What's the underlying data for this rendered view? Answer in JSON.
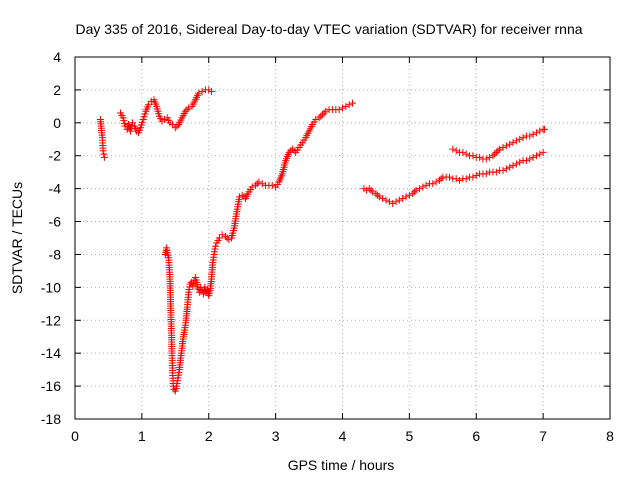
{
  "chart_data": {
    "type": "scatter",
    "title": "Day 335 of 2016, Sidereal Day-to-day VTEC variation (SDTVAR) for receiver rnna",
    "xlabel": "GPS time / hours",
    "ylabel": "SDTVAR / TECUs",
    "xlim": [
      0,
      8
    ],
    "ylim": [
      -18,
      4
    ],
    "xticks": [
      0,
      1,
      2,
      3,
      4,
      5,
      6,
      7,
      8
    ],
    "yticks": [
      -18,
      -16,
      -14,
      -12,
      -10,
      -8,
      -6,
      -4,
      -2,
      0,
      2,
      4
    ],
    "grid": true,
    "marker": "+",
    "color": "#ff0000",
    "series": [
      {
        "segments": [
          [
            [
              0.38,
              0.2
            ],
            [
              0.4,
              -0.6
            ],
            [
              0.41,
              -0.9
            ],
            [
              0.42,
              -1.7
            ],
            [
              0.43,
              -1.9
            ],
            [
              0.44,
              -2.1
            ]
          ],
          [
            [
              0.68,
              0.6
            ],
            [
              0.72,
              0.3
            ],
            [
              0.75,
              -0.2
            ],
            [
              0.78,
              -0.4
            ],
            [
              0.8,
              -0.1
            ],
            [
              0.83,
              -0.5
            ],
            [
              0.86,
              0.0
            ],
            [
              0.89,
              -0.2
            ],
            [
              0.92,
              -0.5
            ],
            [
              0.95,
              -0.6
            ],
            [
              0.98,
              -0.3
            ],
            [
              1.02,
              0.2
            ],
            [
              1.06,
              0.7
            ],
            [
              1.1,
              1.1
            ],
            [
              1.14,
              1.3
            ],
            [
              1.18,
              1.4
            ],
            [
              1.22,
              1.0
            ],
            [
              1.26,
              0.4
            ],
            [
              1.3,
              0.1
            ],
            [
              1.34,
              0.2
            ],
            [
              1.38,
              0.3
            ],
            [
              1.42,
              0.0
            ],
            [
              1.46,
              -0.1
            ],
            [
              1.5,
              -0.3
            ],
            [
              1.55,
              -0.1
            ],
            [
              1.6,
              0.3
            ],
            [
              1.65,
              0.7
            ],
            [
              1.7,
              0.9
            ],
            [
              1.75,
              1.0
            ],
            [
              1.8,
              1.4
            ],
            [
              1.85,
              1.8
            ],
            [
              1.9,
              1.9
            ],
            [
              1.95,
              2.0
            ],
            [
              2.0,
              2.0
            ],
            [
              2.04,
              1.9
            ]
          ],
          [
            [
              1.35,
              -8.0
            ],
            [
              1.37,
              -7.6
            ],
            [
              1.38,
              -7.9
            ],
            [
              1.4,
              -8.2
            ],
            [
              1.41,
              -8.8
            ],
            [
              1.42,
              -9.5
            ],
            [
              1.43,
              -11.0
            ],
            [
              1.44,
              -12.5
            ],
            [
              1.45,
              -14.0
            ],
            [
              1.46,
              -15.2
            ],
            [
              1.47,
              -16.0
            ],
            [
              1.48,
              -16.2
            ],
            [
              1.5,
              -16.3
            ],
            [
              1.52,
              -16.0
            ],
            [
              1.54,
              -15.5
            ],
            [
              1.56,
              -15.0
            ],
            [
              1.58,
              -14.3
            ],
            [
              1.6,
              -13.7
            ],
            [
              1.62,
              -13.0
            ],
            [
              1.64,
              -12.6
            ],
            [
              1.66,
              -12.0
            ],
            [
              1.68,
              -11.2
            ],
            [
              1.7,
              -10.3
            ],
            [
              1.72,
              -9.8
            ],
            [
              1.74,
              -9.7
            ],
            [
              1.76,
              -9.9
            ],
            [
              1.78,
              -9.6
            ],
            [
              1.8,
              -9.4
            ],
            [
              1.82,
              -9.7
            ],
            [
              1.84,
              -10.1
            ],
            [
              1.86,
              -10.3
            ],
            [
              1.88,
              -10.0
            ],
            [
              1.9,
              -10.2
            ],
            [
              1.92,
              -10.4
            ],
            [
              1.94,
              -10.0
            ],
            [
              1.96,
              -10.3
            ],
            [
              1.98,
              -10.1
            ],
            [
              2.0,
              -10.5
            ],
            [
              2.02,
              -10.2
            ],
            [
              2.04,
              -9.5
            ],
            [
              2.06,
              -8.5
            ],
            [
              2.08,
              -8.0
            ],
            [
              2.1,
              -7.5
            ]
          ],
          [
            [
              2.12,
              -7.3
            ],
            [
              2.16,
              -7.0
            ],
            [
              2.2,
              -6.8
            ],
            [
              2.25,
              -6.9
            ],
            [
              2.3,
              -7.1
            ],
            [
              2.34,
              -7.0
            ],
            [
              2.38,
              -6.4
            ],
            [
              2.42,
              -5.4
            ],
            [
              2.46,
              -4.5
            ],
            [
              2.5,
              -4.4
            ],
            [
              2.55,
              -4.6
            ],
            [
              2.6,
              -4.2
            ],
            [
              2.65,
              -3.9
            ],
            [
              2.7,
              -3.8
            ],
            [
              2.75,
              -3.6
            ],
            [
              2.8,
              -3.7
            ],
            [
              2.85,
              -3.8
            ],
            [
              2.9,
              -3.8
            ],
            [
              2.95,
              -3.8
            ],
            [
              3.0,
              -3.9
            ],
            [
              3.05,
              -3.6
            ],
            [
              3.1,
              -3.1
            ],
            [
              3.15,
              -2.3
            ],
            [
              3.2,
              -1.8
            ],
            [
              3.25,
              -1.6
            ],
            [
              3.3,
              -1.8
            ],
            [
              3.35,
              -1.5
            ],
            [
              3.4,
              -1.2
            ],
            [
              3.45,
              -0.9
            ],
            [
              3.5,
              -0.5
            ],
            [
              3.55,
              -0.1
            ],
            [
              3.6,
              0.2
            ],
            [
              3.65,
              0.3
            ],
            [
              3.7,
              0.5
            ],
            [
              3.75,
              0.7
            ],
            [
              3.8,
              0.8
            ],
            [
              3.85,
              0.8
            ],
            [
              3.9,
              0.8
            ],
            [
              3.95,
              0.8
            ],
            [
              4.0,
              0.9
            ],
            [
              4.05,
              1.0
            ],
            [
              4.1,
              1.1
            ],
            [
              4.15,
              1.2
            ]
          ],
          [
            [
              4.32,
              -4.0
            ],
            [
              4.36,
              -4.1
            ],
            [
              4.4,
              -4.0
            ],
            [
              4.45,
              -4.2
            ],
            [
              4.5,
              -4.3
            ],
            [
              4.55,
              -4.5
            ],
            [
              4.6,
              -4.6
            ],
            [
              4.65,
              -4.7
            ],
            [
              4.7,
              -4.8
            ],
            [
              4.75,
              -4.9
            ],
            [
              4.8,
              -4.8
            ],
            [
              4.85,
              -4.7
            ],
            [
              4.9,
              -4.6
            ],
            [
              4.95,
              -4.5
            ],
            [
              5.0,
              -4.4
            ],
            [
              5.05,
              -4.3
            ],
            [
              5.1,
              -4.1
            ],
            [
              5.15,
              -4.0
            ],
            [
              5.2,
              -3.9
            ],
            [
              5.25,
              -3.8
            ],
            [
              5.3,
              -3.7
            ],
            [
              5.35,
              -3.7
            ],
            [
              5.4,
              -3.6
            ],
            [
              5.45,
              -3.5
            ],
            [
              5.5,
              -3.3
            ],
            [
              5.55,
              -3.3
            ],
            [
              5.6,
              -3.3
            ],
            [
              5.65,
              -3.4
            ],
            [
              5.7,
              -3.4
            ],
            [
              5.75,
              -3.5
            ],
            [
              5.8,
              -3.4
            ],
            [
              5.85,
              -3.4
            ],
            [
              5.9,
              -3.3
            ],
            [
              5.95,
              -3.3
            ],
            [
              6.0,
              -3.2
            ],
            [
              6.05,
              -3.1
            ],
            [
              6.1,
              -3.1
            ],
            [
              6.15,
              -3.1
            ],
            [
              6.2,
              -3.0
            ],
            [
              6.25,
              -3.0
            ],
            [
              6.3,
              -3.0
            ],
            [
              6.35,
              -2.9
            ],
            [
              6.4,
              -2.9
            ],
            [
              6.45,
              -2.8
            ],
            [
              6.5,
              -2.7
            ],
            [
              6.55,
              -2.6
            ],
            [
              6.6,
              -2.5
            ],
            [
              6.65,
              -2.4
            ],
            [
              6.7,
              -2.3
            ],
            [
              6.75,
              -2.3
            ],
            [
              6.8,
              -2.2
            ],
            [
              6.85,
              -2.1
            ],
            [
              6.9,
              -2.0
            ],
            [
              6.95,
              -1.9
            ],
            [
              7.0,
              -1.8
            ]
          ],
          [
            [
              5.65,
              -1.6
            ],
            [
              5.7,
              -1.7
            ],
            [
              5.75,
              -1.8
            ],
            [
              5.8,
              -1.8
            ],
            [
              5.85,
              -1.9
            ],
            [
              5.9,
              -2.0
            ],
            [
              5.95,
              -2.0
            ],
            [
              6.0,
              -2.1
            ],
            [
              6.05,
              -2.1
            ],
            [
              6.1,
              -2.2
            ],
            [
              6.15,
              -2.2
            ],
            [
              6.2,
              -2.1
            ],
            [
              6.25,
              -2.0
            ],
            [
              6.3,
              -1.8
            ],
            [
              6.35,
              -1.6
            ],
            [
              6.4,
              -1.5
            ],
            [
              6.45,
              -1.4
            ],
            [
              6.5,
              -1.3
            ],
            [
              6.55,
              -1.2
            ],
            [
              6.6,
              -1.1
            ],
            [
              6.65,
              -1.0
            ],
            [
              6.7,
              -0.9
            ],
            [
              6.75,
              -0.8
            ],
            [
              6.8,
              -0.8
            ],
            [
              6.85,
              -0.7
            ],
            [
              6.9,
              -0.6
            ],
            [
              6.95,
              -0.5
            ],
            [
              7.0,
              -0.4
            ],
            [
              7.02,
              -0.4
            ]
          ]
        ]
      }
    ]
  }
}
